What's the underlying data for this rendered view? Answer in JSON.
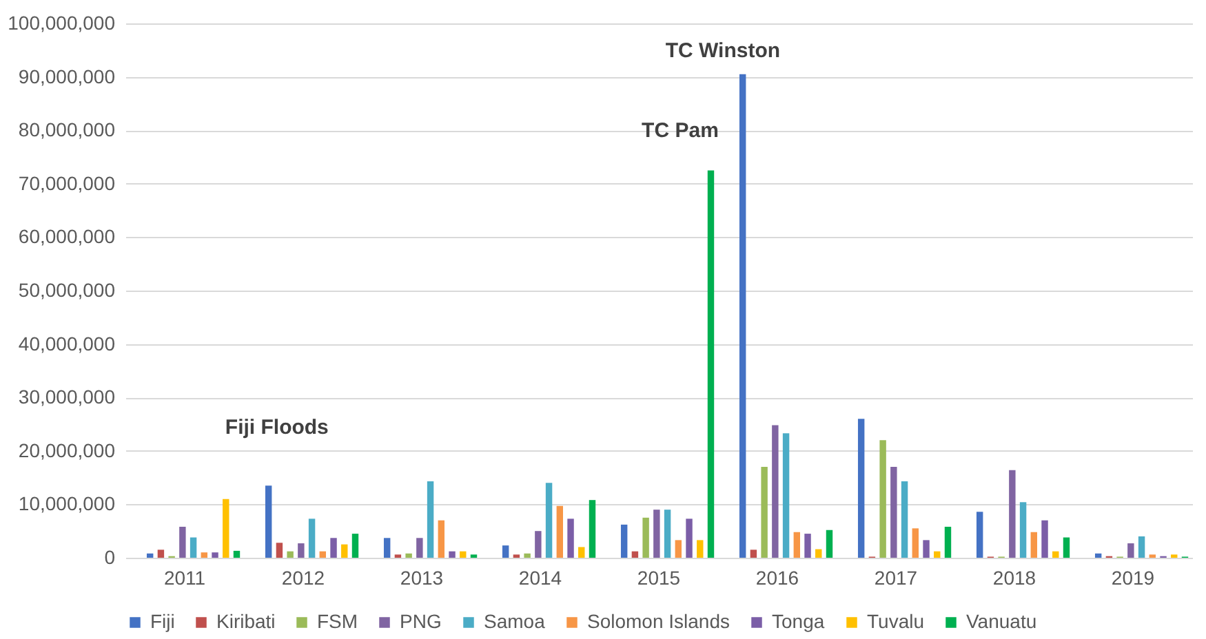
{
  "chart_data": {
    "type": "bar",
    "categories": [
      "2011",
      "2012",
      "2013",
      "2014",
      "2015",
      "2016",
      "2017",
      "2018",
      "2019"
    ],
    "series": [
      {
        "name": "Fiji",
        "color": "#4472c4",
        "values": [
          800000,
          13500000,
          3700000,
          2300000,
          6200000,
          90500000,
          26000000,
          8600000,
          800000
        ]
      },
      {
        "name": "Kiribati",
        "color": "#c0504d",
        "values": [
          1500000,
          2800000,
          600000,
          600000,
          1200000,
          1500000,
          200000,
          200000,
          300000
        ]
      },
      {
        "name": "FSM",
        "color": "#9bbb59",
        "values": [
          300000,
          1200000,
          800000,
          800000,
          7500000,
          17000000,
          22000000,
          200000,
          200000
        ]
      },
      {
        "name": "PNG",
        "color": "#8064a2",
        "values": [
          5800000,
          2700000,
          3700000,
          5000000,
          9000000,
          24800000,
          17000000,
          16400000,
          2700000
        ]
      },
      {
        "name": "Samoa",
        "color": "#4bacc6",
        "values": [
          3800000,
          7300000,
          14300000,
          14000000,
          9000000,
          23300000,
          14300000,
          10400000,
          4000000
        ]
      },
      {
        "name": "Solomon Islands",
        "color": "#f79646",
        "values": [
          1000000,
          1200000,
          7000000,
          9700000,
          3300000,
          4800000,
          5500000,
          4800000,
          600000
        ]
      },
      {
        "name": "Tonga",
        "color": "#7b5ea7",
        "values": [
          1000000,
          3700000,
          1200000,
          7300000,
          7300000,
          4500000,
          3300000,
          7000000,
          300000
        ]
      },
      {
        "name": "Tuvalu",
        "color": "#ffc000",
        "values": [
          11000000,
          2500000,
          1200000,
          2000000,
          3300000,
          1600000,
          1200000,
          1200000,
          600000
        ]
      },
      {
        "name": "Vanuatu",
        "color": "#00b050",
        "values": [
          1300000,
          4500000,
          600000,
          10800000,
          72500000,
          5200000,
          5800000,
          3800000,
          200000
        ]
      }
    ],
    "ylim": [
      0,
      100000000
    ],
    "yticks": [
      0,
      {
        "value": 10000000,
        "label": "10,000,000"
      },
      {
        "value": 20000000,
        "label": "20,000,000"
      },
      {
        "value": 30000000,
        "label": "30,000,000"
      },
      {
        "value": 40000000,
        "label": "40,000,000"
      },
      {
        "value": 50000000,
        "label": "50,000,000"
      },
      {
        "value": 60000000,
        "label": "60,000,000"
      },
      {
        "value": 70000000,
        "label": "70,000,000"
      },
      {
        "value": 80000000,
        "label": "80,000,000"
      },
      {
        "value": 90000000,
        "label": "90,000,000"
      },
      {
        "value": 100000000,
        "label": "100,000,000"
      }
    ],
    "grid": "y",
    "legend": "bottom",
    "annotations": [
      "Fiji Floods",
      "TC Pam",
      "TC Winston"
    ]
  }
}
